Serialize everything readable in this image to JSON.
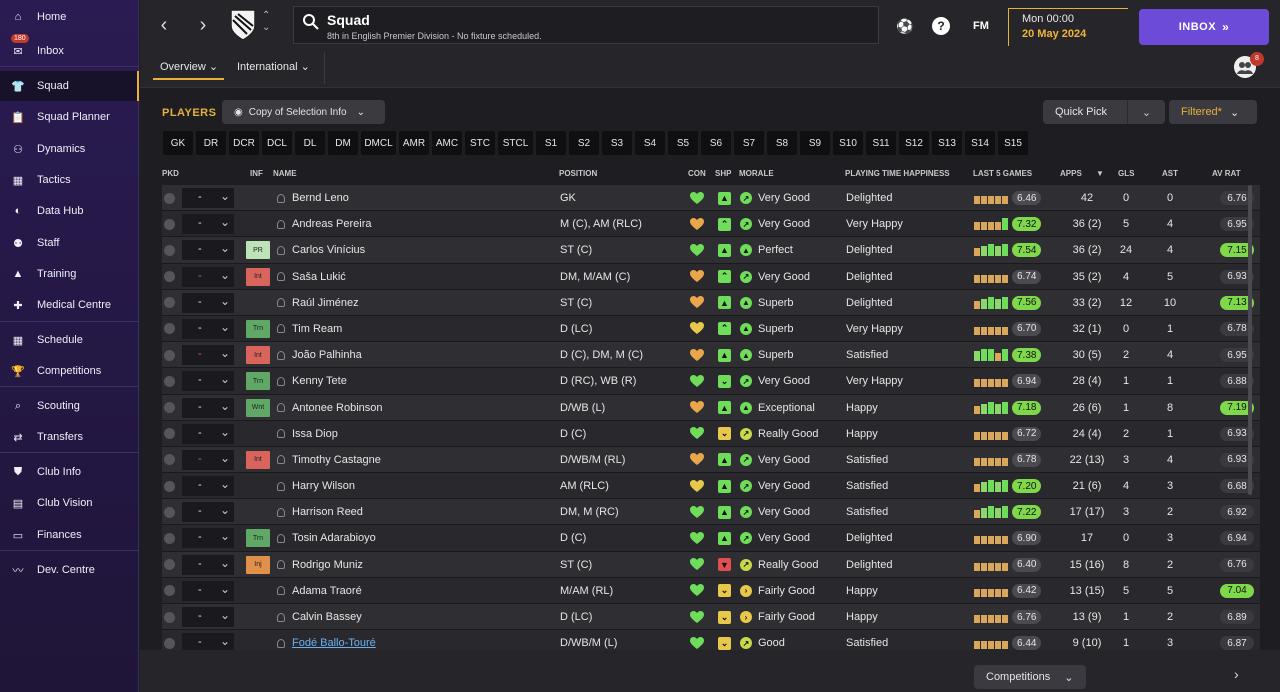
{
  "sidebar": {
    "items": [
      {
        "label": "Home",
        "icon": "home-icon"
      },
      {
        "label": "Inbox",
        "icon": "inbox-icon",
        "badge": "180"
      },
      {
        "label": "Squad",
        "icon": "squad-icon",
        "active": true
      },
      {
        "label": "Squad Planner",
        "icon": "clipboard-icon"
      },
      {
        "label": "Dynamics",
        "icon": "dynamics-icon"
      },
      {
        "label": "Tactics",
        "icon": "tactics-icon"
      },
      {
        "label": "Data Hub",
        "icon": "data-hub-icon"
      },
      {
        "label": "Staff",
        "icon": "staff-icon"
      },
      {
        "label": "Training",
        "icon": "training-icon"
      },
      {
        "label": "Medical Centre",
        "icon": "medical-icon"
      },
      {
        "label": "Schedule",
        "icon": "calendar-icon"
      },
      {
        "label": "Competitions",
        "icon": "trophy-icon"
      },
      {
        "label": "Scouting",
        "icon": "search-icon"
      },
      {
        "label": "Transfers",
        "icon": "transfers-icon"
      },
      {
        "label": "Club Info",
        "icon": "shield-icon"
      },
      {
        "label": "Club Vision",
        "icon": "briefcase-icon"
      },
      {
        "label": "Finances",
        "icon": "finances-icon"
      },
      {
        "label": "Dev. Centre",
        "icon": "dev-centre-icon"
      }
    ]
  },
  "header": {
    "title": "Squad",
    "subtitle": "8th in English Premier Division - No fixture scheduled.",
    "time": "Mon 00:00",
    "date": "20 May 2024",
    "inbox_label": "INBOX",
    "fm_label": "FM",
    "help_label": "?",
    "user_badge": "8",
    "tabs": [
      {
        "label": "Overview"
      },
      {
        "label": "International"
      }
    ]
  },
  "toolbar": {
    "players_label": "PLAYERS",
    "copy_label": "Copy of Selection Info",
    "quick_pick_label": "Quick Pick",
    "filtered_label": "Filtered*"
  },
  "positions": [
    "GK",
    "DR",
    "DCR",
    "DCL",
    "DL",
    "DM",
    "DMCL",
    "AMR",
    "AMC",
    "STC",
    "STCL",
    "S1",
    "S2",
    "S3",
    "S4",
    "S5",
    "S6",
    "S7",
    "S8",
    "S9",
    "S10",
    "S11",
    "S12",
    "S13",
    "S14",
    "S15"
  ],
  "table": {
    "headers": {
      "pkd": "PKD",
      "inf": "INF",
      "name": "NAME",
      "position": "POSITION",
      "con": "CON",
      "shp": "SHP",
      "morale": "MORALE",
      "pth": "PLAYING TIME HAPPINESS",
      "last5": "LAST 5 GAMES",
      "apps": "APPS",
      "gls": "GLS",
      "ast": "AST",
      "avrat": "AV RAT"
    },
    "rows": [
      {
        "sel": "-",
        "inf": "",
        "name": "Bernd Leno",
        "position": "GK",
        "con": "green",
        "shp": "good",
        "morale": "Very Good",
        "morale_tier": "good",
        "pth": "Delighted",
        "form": [
          3,
          3,
          3,
          3,
          3
        ],
        "last5": "6.46",
        "last5_hi": false,
        "apps": "42",
        "gls": "0",
        "ast": "0",
        "avrat": "6.76",
        "avrat_hi": false
      },
      {
        "sel": "-",
        "inf": "",
        "name": "Andreas Pereira",
        "position": "M (C), AM (RLC)",
        "con": "orange",
        "shp": "up",
        "morale": "Very Good",
        "morale_tier": "good",
        "pth": "Very Happy",
        "form": [
          3,
          3,
          3,
          3,
          5
        ],
        "last5": "7.32",
        "last5_hi": true,
        "apps": "36 (2)",
        "gls": "5",
        "ast": "4",
        "avrat": "6.95",
        "avrat_hi": false
      },
      {
        "sel": "-",
        "inf": "PR",
        "inf_color": "#bfe3b8",
        "name": "Carlos Vinícius",
        "position": "ST (C)",
        "con": "green",
        "shp": "good",
        "morale": "Perfect",
        "morale_tier": "top",
        "pth": "Delighted",
        "form": [
          3,
          4,
          5,
          4,
          5
        ],
        "last5": "7.54",
        "last5_hi": true,
        "apps": "36 (2)",
        "gls": "24",
        "ast": "4",
        "avrat": "7.15",
        "avrat_hi": true
      },
      {
        "sel": "-",
        "sel_red": true,
        "inf": "Int",
        "inf_color": "#d9645c",
        "name": "Saša Lukić",
        "position": "DM, M/AM (C)",
        "con": "orange",
        "shp": "up",
        "morale": "Very Good",
        "morale_tier": "good",
        "pth": "Delighted",
        "form": [
          3,
          3,
          3,
          3,
          3
        ],
        "last5": "6.74",
        "last5_hi": false,
        "apps": "35 (2)",
        "gls": "4",
        "ast": "5",
        "avrat": "6.93",
        "avrat_hi": false
      },
      {
        "sel": "-",
        "inf": "",
        "name": "Raúl Jiménez",
        "position": "ST (C)",
        "con": "orange",
        "shp": "good",
        "morale": "Superb",
        "morale_tier": "top",
        "pth": "Delighted",
        "form": [
          3,
          4,
          5,
          4,
          5
        ],
        "last5": "7.56",
        "last5_hi": true,
        "apps": "33 (2)",
        "gls": "12",
        "ast": "10",
        "avrat": "7.13",
        "avrat_hi": true
      },
      {
        "sel": "-",
        "inf": "Trn",
        "inf_color": "#5fa866",
        "name": "Tim Ream",
        "position": "D (LC)",
        "con": "yellow",
        "shp": "up",
        "morale": "Superb",
        "morale_tier": "top",
        "pth": "Very Happy",
        "form": [
          3,
          3,
          3,
          3,
          3
        ],
        "last5": "6.70",
        "last5_hi": false,
        "apps": "32 (1)",
        "gls": "0",
        "ast": "1",
        "avrat": "6.78",
        "avrat_hi": false
      },
      {
        "sel": "-",
        "sel_red": true,
        "inf": "Int",
        "inf_color": "#d9645c",
        "name": "João Palhinha",
        "position": "D (C), DM, M (C)",
        "con": "orange",
        "shp": "good",
        "morale": "Superb",
        "morale_tier": "top",
        "pth": "Satisfied",
        "form": [
          4,
          5,
          5,
          3,
          5
        ],
        "last5": "7.38",
        "last5_hi": true,
        "apps": "30 (5)",
        "gls": "2",
        "ast": "4",
        "avrat": "6.95",
        "avrat_hi": false
      },
      {
        "sel": "-",
        "inf": "Trn",
        "inf_color": "#5fa866",
        "name": "Kenny Tete",
        "position": "D (RC), WB (R)",
        "con": "green",
        "shp": "down",
        "morale": "Very Good",
        "morale_tier": "good",
        "pth": "Very Happy",
        "form": [
          3,
          3,
          3,
          3,
          3
        ],
        "last5": "6.94",
        "last5_hi": false,
        "apps": "28 (4)",
        "gls": "1",
        "ast": "1",
        "avrat": "6.88",
        "avrat_hi": false
      },
      {
        "sel": "-",
        "inf": "Wnt",
        "inf_color": "#5fa866",
        "name": "Antonee Robinson",
        "position": "D/WB (L)",
        "con": "orange",
        "shp": "good",
        "morale": "Exceptional",
        "morale_tier": "top",
        "pth": "Happy",
        "form": [
          3,
          4,
          5,
          4,
          5
        ],
        "last5": "7.18",
        "last5_hi": true,
        "apps": "26 (6)",
        "gls": "1",
        "ast": "8",
        "avrat": "7.19",
        "avrat_hi": true
      },
      {
        "sel": "-",
        "inf": "",
        "name": "Issa Diop",
        "position": "D (C)",
        "con": "green",
        "shp": "down-y",
        "morale": "Really Good",
        "morale_tier": "ok",
        "pth": "Happy",
        "form": [
          3,
          3,
          3,
          3,
          3
        ],
        "last5": "6.72",
        "last5_hi": false,
        "apps": "24 (4)",
        "gls": "2",
        "ast": "1",
        "avrat": "6.93",
        "avrat_hi": false
      },
      {
        "sel": "-",
        "sel_red": true,
        "inf": "Int",
        "inf_color": "#d9645c",
        "name": "Timothy Castagne",
        "position": "D/WB/M (RL)",
        "con": "orange",
        "shp": "good",
        "morale": "Very Good",
        "morale_tier": "good",
        "pth": "Satisfied",
        "form": [
          3,
          3,
          3,
          3,
          3
        ],
        "last5": "6.78",
        "last5_hi": false,
        "apps": "22 (13)",
        "gls": "3",
        "ast": "4",
        "avrat": "6.93",
        "avrat_hi": false
      },
      {
        "sel": "-",
        "inf": "",
        "name": "Harry Wilson",
        "position": "AM (RLC)",
        "con": "yellow",
        "shp": "good",
        "morale": "Very Good",
        "morale_tier": "good",
        "pth": "Satisfied",
        "form": [
          3,
          4,
          5,
          4,
          5
        ],
        "last5": "7.20",
        "last5_hi": true,
        "apps": "21 (6)",
        "gls": "4",
        "ast": "3",
        "avrat": "6.68",
        "avrat_hi": false
      },
      {
        "sel": "-",
        "inf": "",
        "name": "Harrison Reed",
        "position": "DM, M (RC)",
        "con": "green",
        "shp": "good",
        "morale": "Very Good",
        "morale_tier": "good",
        "pth": "Satisfied",
        "form": [
          3,
          4,
          5,
          4,
          5
        ],
        "last5": "7.22",
        "last5_hi": true,
        "apps": "17 (17)",
        "gls": "3",
        "ast": "2",
        "avrat": "6.92",
        "avrat_hi": false
      },
      {
        "sel": "-",
        "inf": "Trn",
        "inf_color": "#5fa866",
        "name": "Tosin Adarabioyo",
        "position": "D (C)",
        "con": "green",
        "shp": "good",
        "morale": "Very Good",
        "morale_tier": "good",
        "pth": "Delighted",
        "form": [
          3,
          3,
          3,
          3,
          3
        ],
        "last5": "6.90",
        "last5_hi": false,
        "apps": "17",
        "gls": "0",
        "ast": "3",
        "avrat": "6.94",
        "avrat_hi": false
      },
      {
        "sel": "-",
        "inf": "Inj",
        "inf_color": "#e0904a",
        "name": "Rodrigo Muniz",
        "position": "ST (C)",
        "con": "green",
        "shp": "bad",
        "morale": "Really Good",
        "morale_tier": "ok",
        "pth": "Delighted",
        "form": [
          3,
          3,
          3,
          3,
          3
        ],
        "last5": "6.40",
        "last5_hi": false,
        "apps": "15 (16)",
        "gls": "8",
        "ast": "2",
        "avrat": "6.76",
        "avrat_hi": false
      },
      {
        "sel": "-",
        "inf": "",
        "name": "Adama Traoré",
        "position": "M/AM (RL)",
        "con": "green",
        "shp": "down-y",
        "morale": "Fairly Good",
        "morale_tier": "fair",
        "pth": "Happy",
        "form": [
          3,
          3,
          3,
          3,
          3
        ],
        "last5": "6.42",
        "last5_hi": false,
        "apps": "13 (15)",
        "gls": "5",
        "ast": "5",
        "avrat": "7.04",
        "avrat_hi": true
      },
      {
        "sel": "-",
        "inf": "",
        "name": "Calvin Bassey",
        "position": "D (LC)",
        "con": "green",
        "shp": "down-y",
        "morale": "Fairly Good",
        "morale_tier": "fair",
        "pth": "Happy",
        "form": [
          3,
          3,
          3,
          3,
          3
        ],
        "last5": "6.76",
        "last5_hi": false,
        "apps": "13 (9)",
        "gls": "1",
        "ast": "2",
        "avrat": "6.89",
        "avrat_hi": false
      },
      {
        "sel": "-",
        "inf": "",
        "name": "Fodé Ballo-Touré",
        "name_link": true,
        "position": "D/WB/M (L)",
        "con": "green",
        "shp": "down-y",
        "morale": "Good",
        "morale_tier": "ok",
        "pth": "Satisfied",
        "form": [
          3,
          3,
          3,
          3,
          3
        ],
        "last5": "6.44",
        "last5_hi": false,
        "apps": "9 (10)",
        "gls": "1",
        "ast": "3",
        "avrat": "6.87",
        "avrat_hi": false
      }
    ]
  },
  "bottom": {
    "competitions_label": "Competitions"
  },
  "colors": {
    "accent": "#e8b23a",
    "inbox": "#6c4bd9",
    "rating_hi": "#7fd84a",
    "rating_lo": "#4a4a50"
  }
}
